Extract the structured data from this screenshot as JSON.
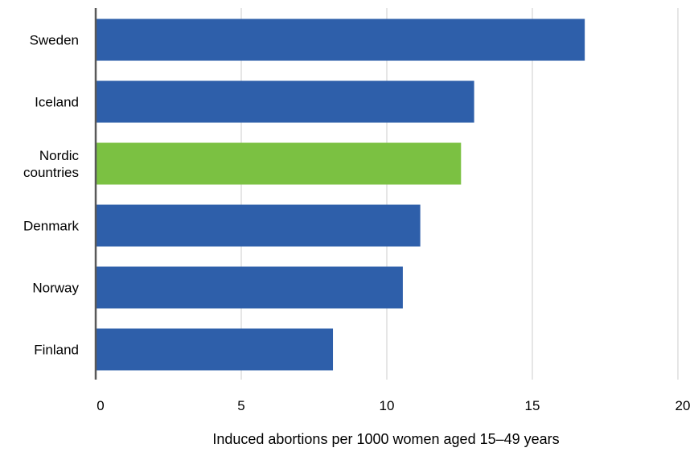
{
  "chart_data": {
    "type": "bar",
    "orientation": "horizontal",
    "categories": [
      "Sweden",
      "Iceland",
      "Nordic countries",
      "Denmark",
      "Norway",
      "Finland"
    ],
    "category_label_lines": [
      [
        "Sweden"
      ],
      [
        "Iceland"
      ],
      [
        "Nordic",
        "countries"
      ],
      [
        "Denmark"
      ],
      [
        "Norway"
      ],
      [
        "Finland"
      ]
    ],
    "values": [
      16.8,
      13.0,
      12.55,
      11.15,
      10.55,
      8.15
    ],
    "bar_colors": [
      "#2e5faa",
      "#2e5faa",
      "#7bc142",
      "#2e5faa",
      "#2e5faa",
      "#2e5faa"
    ],
    "xlim": [
      0,
      20
    ],
    "xticks": [
      0,
      5,
      10,
      15,
      20
    ],
    "xlabel": "Induced abortions per 1000 women aged 15–49 years",
    "ylabel": "",
    "title": "",
    "grid": true,
    "legend": "none"
  },
  "colors": {
    "primary_bar": "#2e5faa",
    "highlight_bar": "#7bc142",
    "gridline": "#d9d9d9",
    "axis_line": "#595959"
  }
}
